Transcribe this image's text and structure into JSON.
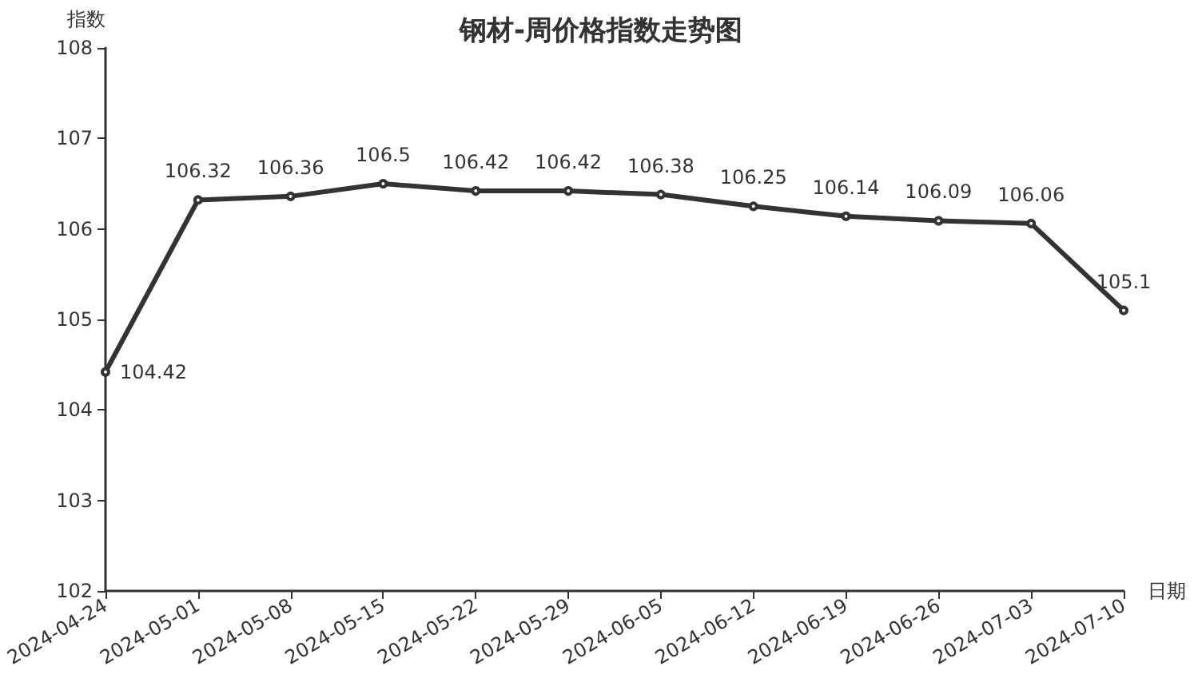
{
  "chart_data": {
    "type": "line",
    "title": "钢材-周价格指数走势图",
    "xlabel": "日期",
    "ylabel": "指数",
    "categories": [
      "2024-04-24",
      "2024-05-01",
      "2024-05-08",
      "2024-05-15",
      "2024-05-22",
      "2024-05-29",
      "2024-06-05",
      "2024-06-12",
      "2024-06-19",
      "2024-06-26",
      "2024-07-03",
      "2024-07-10"
    ],
    "series": [
      {
        "color": "#333333",
        "values": [
          104.42,
          106.32,
          106.36,
          106.5,
          106.42,
          106.42,
          106.38,
          106.25,
          106.14,
          106.09,
          106.06,
          105.1
        ]
      }
    ],
    "ylim": [
      102,
      108
    ],
    "yticks": [
      102,
      103,
      104,
      105,
      106,
      107,
      108
    ],
    "data_labels": true,
    "marker": "circle",
    "line_style": "solid",
    "grid": false
  }
}
